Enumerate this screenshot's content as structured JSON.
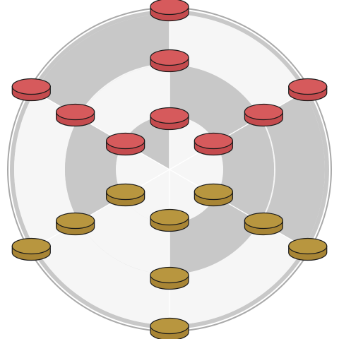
{
  "game": {
    "board": "circular-3-ring-6-spoke",
    "rings": 3,
    "spokes": 6
  },
  "colors": {
    "background": "#ffffff",
    "ring_shade": "#c8c8c8",
    "ring_light": "#f6f6f6",
    "outline": "#a9a9a9",
    "red_top": "#d65a5c",
    "red_side": "#c44b4e",
    "gold_top": "#b8963f",
    "gold_side": "#a88535",
    "piece_stroke": "#1a1a1a"
  },
  "pieces": [
    {
      "color": "red",
      "ring": 3,
      "spoke": "N"
    },
    {
      "color": "red",
      "ring": 2,
      "spoke": "N"
    },
    {
      "color": "red",
      "ring": 1,
      "spoke": "N"
    },
    {
      "color": "red",
      "ring": 3,
      "spoke": "NW"
    },
    {
      "color": "red",
      "ring": 2,
      "spoke": "NW"
    },
    {
      "color": "red",
      "ring": 1,
      "spoke": "NW"
    },
    {
      "color": "red",
      "ring": 3,
      "spoke": "NE"
    },
    {
      "color": "red",
      "ring": 2,
      "spoke": "NE"
    },
    {
      "color": "red",
      "ring": 1,
      "spoke": "NE"
    },
    {
      "color": "gold",
      "ring": 1,
      "spoke": "SW"
    },
    {
      "color": "gold",
      "ring": 1,
      "spoke": "SE"
    },
    {
      "color": "gold",
      "ring": 1,
      "spoke": "S"
    },
    {
      "color": "gold",
      "ring": 2,
      "spoke": "SW"
    },
    {
      "color": "gold",
      "ring": 2,
      "spoke": "SE"
    },
    {
      "color": "gold",
      "ring": 2,
      "spoke": "S"
    },
    {
      "color": "gold",
      "ring": 3,
      "spoke": "SW"
    },
    {
      "color": "gold",
      "ring": 3,
      "spoke": "SE"
    },
    {
      "color": "gold",
      "ring": 3,
      "spoke": "S"
    }
  ]
}
